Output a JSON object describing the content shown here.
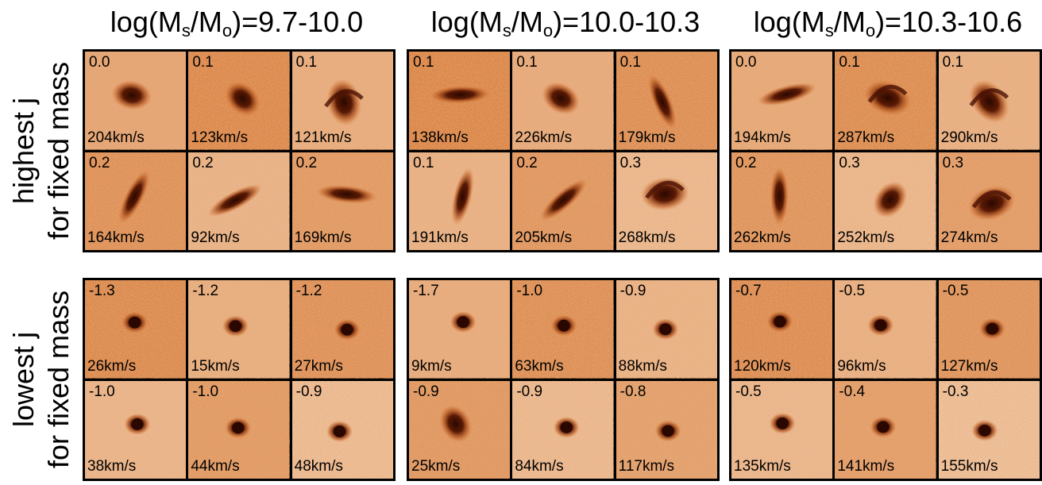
{
  "column_titles": [
    {
      "pre": "log(M",
      "sub1": "s",
      "mid": "/M",
      "sub2": "o",
      "post": ")=9.7-10.0"
    },
    {
      "pre": "log(M",
      "sub1": "s",
      "mid": "/M",
      "sub2": "o",
      "post": ")=10.0-10.3"
    },
    {
      "pre": "log(M",
      "sub1": "s",
      "mid": "/M",
      "sub2": "o",
      "post": ")=10.3-10.6"
    }
  ],
  "row_labels": [
    {
      "line1": "highest j",
      "line2": "for fixed mass"
    },
    {
      "line1": "lowest j",
      "line2": "for fixed mass"
    }
  ],
  "colors": {
    "background_dark": "#d06a28",
    "background_light": "#fbeadb",
    "galaxy": "#2a0800"
  },
  "panels": [
    {
      "row": "highest",
      "mass_bin": "9.7-10.0",
      "cells": [
        {
          "j": "0.0",
          "v": "204km/s",
          "shape": "blob"
        },
        {
          "j": "0.1",
          "v": "123km/s",
          "shape": "blob"
        },
        {
          "j": "0.1",
          "v": "121km/s",
          "shape": "spiral"
        },
        {
          "j": "0.2",
          "v": "164km/s",
          "shape": "disk"
        },
        {
          "j": "0.2",
          "v": "92km/s",
          "shape": "disk"
        },
        {
          "j": "0.2",
          "v": "169km/s",
          "shape": "disk"
        }
      ]
    },
    {
      "row": "highest",
      "mass_bin": "10.0-10.3",
      "cells": [
        {
          "j": "0.1",
          "v": "138km/s",
          "shape": "disk"
        },
        {
          "j": "0.1",
          "v": "226km/s",
          "shape": "blob"
        },
        {
          "j": "0.1",
          "v": "179km/s",
          "shape": "disk"
        },
        {
          "j": "0.1",
          "v": "191km/s",
          "shape": "disk"
        },
        {
          "j": "0.2",
          "v": "205km/s",
          "shape": "disk"
        },
        {
          "j": "0.3",
          "v": "268km/s",
          "shape": "spiral"
        }
      ]
    },
    {
      "row": "highest",
      "mass_bin": "10.3-10.6",
      "cells": [
        {
          "j": "0.0",
          "v": "194km/s",
          "shape": "disk"
        },
        {
          "j": "0.1",
          "v": "287km/s",
          "shape": "spiral"
        },
        {
          "j": "0.1",
          "v": "290km/s",
          "shape": "spiral"
        },
        {
          "j": "0.2",
          "v": "262km/s",
          "shape": "disk"
        },
        {
          "j": "0.3",
          "v": "252km/s",
          "shape": "blob"
        },
        {
          "j": "0.3",
          "v": "274km/s",
          "shape": "spiral"
        }
      ]
    },
    {
      "row": "lowest",
      "mass_bin": "9.7-10.0",
      "cells": [
        {
          "j": "-1.3",
          "v": "26km/s",
          "shape": "compact"
        },
        {
          "j": "-1.2",
          "v": "15km/s",
          "shape": "compact"
        },
        {
          "j": "-1.2",
          "v": "27km/s",
          "shape": "compact"
        },
        {
          "j": "-1.0",
          "v": "38km/s",
          "shape": "compact"
        },
        {
          "j": "-1.0",
          "v": "44km/s",
          "shape": "compact"
        },
        {
          "j": "-0.9",
          "v": "48km/s",
          "shape": "compact"
        }
      ]
    },
    {
      "row": "lowest",
      "mass_bin": "10.0-10.3",
      "cells": [
        {
          "j": "-1.7",
          "v": "9km/s",
          "shape": "compact"
        },
        {
          "j": "-1.0",
          "v": "63km/s",
          "shape": "compact"
        },
        {
          "j": "-0.9",
          "v": "88km/s",
          "shape": "compact"
        },
        {
          "j": "-0.9",
          "v": "25km/s",
          "shape": "blob"
        },
        {
          "j": "-0.9",
          "v": "84km/s",
          "shape": "compact"
        },
        {
          "j": "-0.8",
          "v": "117km/s",
          "shape": "compact"
        }
      ]
    },
    {
      "row": "lowest",
      "mass_bin": "10.3-10.6",
      "cells": [
        {
          "j": "-0.7",
          "v": "120km/s",
          "shape": "compact"
        },
        {
          "j": "-0.5",
          "v": "96km/s",
          "shape": "compact"
        },
        {
          "j": "-0.5",
          "v": "127km/s",
          "shape": "compact"
        },
        {
          "j": "-0.5",
          "v": "135km/s",
          "shape": "compact"
        },
        {
          "j": "-0.4",
          "v": "141km/s",
          "shape": "compact"
        },
        {
          "j": "-0.3",
          "v": "155km/s",
          "shape": "compact"
        }
      ]
    }
  ]
}
